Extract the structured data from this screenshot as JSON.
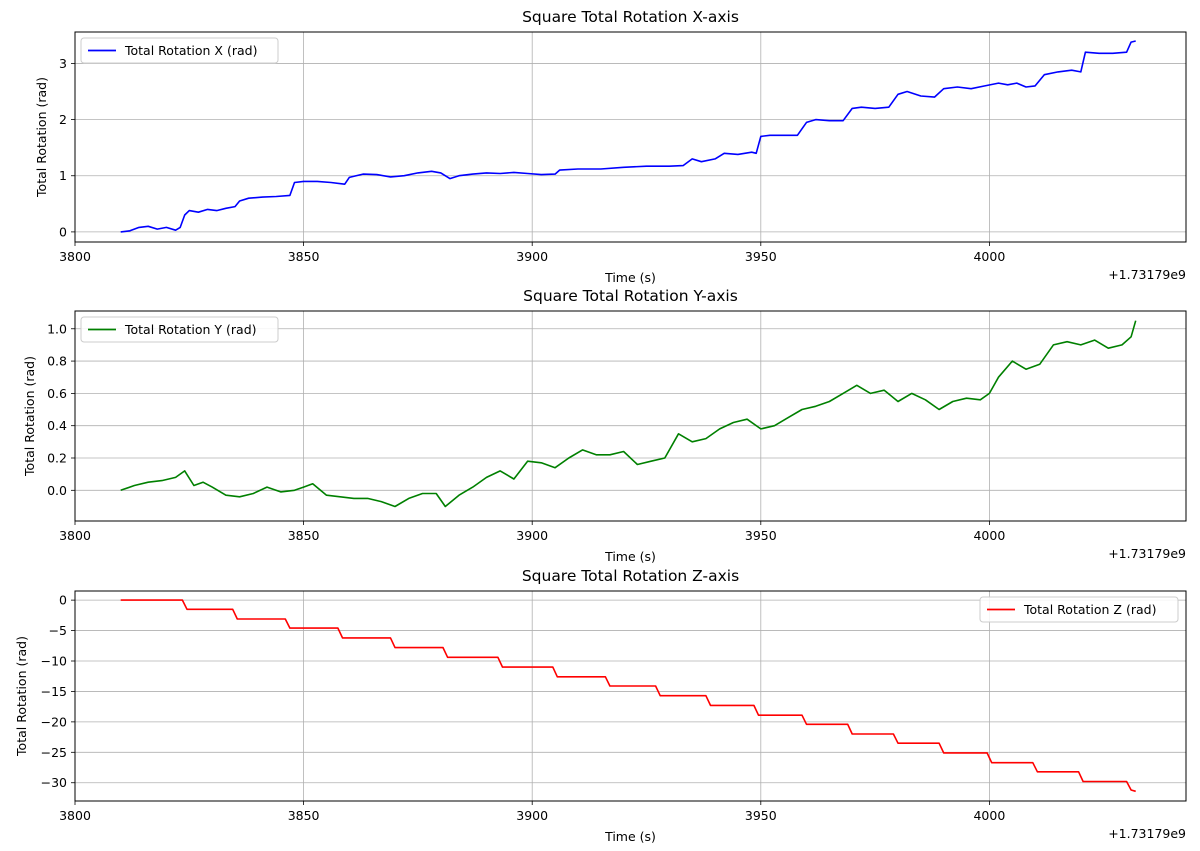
{
  "chart_data": [
    {
      "type": "line",
      "title": "Square Total Rotation X-axis",
      "xlabel": "Time (s)",
      "ylabel": "Total Rotation (rad)",
      "offset_label": "+1.73179e9",
      "xlim": [
        3800,
        4043
      ],
      "ylim": [
        -0.18,
        3.56
      ],
      "xticks": [
        3800,
        3850,
        3900,
        3950,
        4000
      ],
      "yticks": [
        0,
        1,
        2,
        3
      ],
      "ytick_labels": [
        "0",
        "1",
        "2",
        "3"
      ],
      "grid": true,
      "legend_position": "upper left",
      "series": [
        {
          "name": "Total Rotation X (rad)",
          "color": "#0000ff",
          "x": [
            3810,
            3812,
            3814,
            3816,
            3818,
            3820,
            3822,
            3823,
            3824,
            3825,
            3827,
            3829,
            3831,
            3833,
            3835,
            3836,
            3838,
            3841,
            3844,
            3847,
            3848,
            3850,
            3853,
            3856,
            3859,
            3860,
            3863,
            3866,
            3869,
            3872,
            3875,
            3878,
            3880,
            3882,
            3884,
            3887,
            3890,
            3893,
            3896,
            3899,
            3902,
            3905,
            3906,
            3910,
            3915,
            3920,
            3925,
            3930,
            3933,
            3935,
            3937,
            3940,
            3942,
            3945,
            3948,
            3949,
            3950,
            3952,
            3955,
            3958,
            3960,
            3962,
            3965,
            3968,
            3970,
            3972,
            3975,
            3978,
            3980,
            3982,
            3985,
            3988,
            3990,
            3993,
            3996,
            3999,
            4002,
            4004,
            4006,
            4008,
            4010,
            4012,
            4015,
            4018,
            4020,
            4021,
            4024,
            4027,
            4030,
            4031,
            4032
          ],
          "y": [
            0.0,
            0.02,
            0.08,
            0.1,
            0.05,
            0.08,
            0.03,
            0.08,
            0.3,
            0.38,
            0.35,
            0.4,
            0.38,
            0.42,
            0.45,
            0.55,
            0.6,
            0.62,
            0.63,
            0.65,
            0.88,
            0.9,
            0.9,
            0.88,
            0.85,
            0.97,
            1.03,
            1.02,
            0.98,
            1.0,
            1.05,
            1.08,
            1.05,
            0.95,
            1.0,
            1.03,
            1.05,
            1.04,
            1.06,
            1.04,
            1.02,
            1.03,
            1.1,
            1.12,
            1.12,
            1.15,
            1.17,
            1.17,
            1.18,
            1.3,
            1.25,
            1.3,
            1.4,
            1.38,
            1.42,
            1.4,
            1.7,
            1.72,
            1.72,
            1.72,
            1.95,
            2.0,
            1.98,
            1.98,
            2.2,
            2.22,
            2.2,
            2.22,
            2.45,
            2.5,
            2.42,
            2.4,
            2.55,
            2.58,
            2.55,
            2.6,
            2.65,
            2.62,
            2.65,
            2.58,
            2.6,
            2.8,
            2.85,
            2.88,
            2.85,
            3.2,
            3.18,
            3.18,
            3.2,
            3.38,
            3.4
          ]
        }
      ]
    },
    {
      "type": "line",
      "title": "Square Total Rotation Y-axis",
      "xlabel": "Time (s)",
      "ylabel": "Total Rotation (rad)",
      "offset_label": "+1.73179e9",
      "xlim": [
        3800,
        4043
      ],
      "ylim": [
        -0.19,
        1.11
      ],
      "xticks": [
        3800,
        3850,
        3900,
        3950,
        4000
      ],
      "yticks": [
        0.0,
        0.2,
        0.4,
        0.6,
        0.8,
        1.0
      ],
      "ytick_labels": [
        "0.0",
        "0.2",
        "0.4",
        "0.6",
        "0.8",
        "1.0"
      ],
      "grid": true,
      "legend_position": "upper left",
      "series": [
        {
          "name": "Total Rotation Y (rad)",
          "color": "#008000",
          "x": [
            3810,
            3813,
            3816,
            3819,
            3822,
            3824,
            3826,
            3828,
            3830,
            3833,
            3836,
            3839,
            3842,
            3845,
            3848,
            3850,
            3852,
            3855,
            3858,
            3861,
            3864,
            3867,
            3870,
            3873,
            3876,
            3879,
            3881,
            3884,
            3887,
            3890,
            3893,
            3896,
            3899,
            3902,
            3905,
            3908,
            3911,
            3914,
            3917,
            3920,
            3923,
            3926,
            3929,
            3932,
            3935,
            3938,
            3941,
            3944,
            3947,
            3950,
            3953,
            3956,
            3959,
            3962,
            3965,
            3968,
            3971,
            3974,
            3977,
            3980,
            3983,
            3986,
            3989,
            3992,
            3995,
            3998,
            4000,
            4002,
            4005,
            4008,
            4011,
            4014,
            4017,
            4020,
            4023,
            4026,
            4029,
            4031,
            4032
          ],
          "y": [
            0.0,
            0.03,
            0.05,
            0.06,
            0.08,
            0.12,
            0.03,
            0.05,
            0.02,
            -0.03,
            -0.04,
            -0.02,
            0.02,
            -0.01,
            0.0,
            0.02,
            0.04,
            -0.03,
            -0.04,
            -0.05,
            -0.05,
            -0.07,
            -0.1,
            -0.05,
            -0.02,
            -0.02,
            -0.1,
            -0.03,
            0.02,
            0.08,
            0.12,
            0.07,
            0.18,
            0.17,
            0.14,
            0.2,
            0.25,
            0.22,
            0.22,
            0.24,
            0.16,
            0.18,
            0.2,
            0.35,
            0.3,
            0.32,
            0.38,
            0.42,
            0.44,
            0.38,
            0.4,
            0.45,
            0.5,
            0.52,
            0.55,
            0.6,
            0.65,
            0.6,
            0.62,
            0.55,
            0.6,
            0.56,
            0.5,
            0.55,
            0.57,
            0.56,
            0.6,
            0.7,
            0.8,
            0.75,
            0.78,
            0.9,
            0.92,
            0.9,
            0.93,
            0.88,
            0.9,
            0.95,
            1.05
          ]
        }
      ]
    },
    {
      "type": "line",
      "title": "Square Total Rotation Z-axis",
      "xlabel": "Time (s)",
      "ylabel": "Total Rotation (rad)",
      "offset_label": "+1.73179e9",
      "xlim": [
        3800,
        4043
      ],
      "ylim": [
        -33.0,
        1.5
      ],
      "xticks": [
        3800,
        3850,
        3900,
        3950,
        4000
      ],
      "yticks": [
        0,
        -5,
        -10,
        -15,
        -20,
        -25,
        -30
      ],
      "ytick_labels": [
        "0",
        "−5",
        "−10",
        "−15",
        "−20",
        "−25",
        "−30"
      ],
      "grid": true,
      "legend_position": "upper right",
      "series": [
        {
          "name": "Total Rotation Z (rad)",
          "color": "#ff0000",
          "x": [
            3810,
            3823.5,
            3824.5,
            3834.5,
            3835.5,
            3846,
            3847,
            3857.5,
            3858.5,
            3869,
            3870,
            3880.5,
            3881.5,
            3892.5,
            3893.5,
            3904.5,
            3905.5,
            3916,
            3917,
            3927,
            3928,
            3938,
            3939,
            3948.5,
            3949.5,
            3959,
            3960,
            3969,
            3970,
            3979,
            3980,
            3989,
            3990,
            3999.5,
            4000.5,
            4009.5,
            4010.5,
            4019.5,
            4020.5,
            4030,
            4031,
            4032
          ],
          "y": [
            0.0,
            0.0,
            -1.5,
            -1.5,
            -3.1,
            -3.1,
            -4.6,
            -4.6,
            -6.2,
            -6.2,
            -7.8,
            -7.8,
            -9.4,
            -9.4,
            -11.0,
            -11.0,
            -12.6,
            -12.6,
            -14.1,
            -14.1,
            -15.7,
            -15.7,
            -17.3,
            -17.3,
            -18.9,
            -18.9,
            -20.4,
            -20.4,
            -22.0,
            -22.0,
            -23.5,
            -23.5,
            -25.1,
            -25.1,
            -26.7,
            -26.7,
            -28.2,
            -28.2,
            -29.8,
            -29.8,
            -31.2,
            -31.4
          ]
        }
      ]
    }
  ]
}
